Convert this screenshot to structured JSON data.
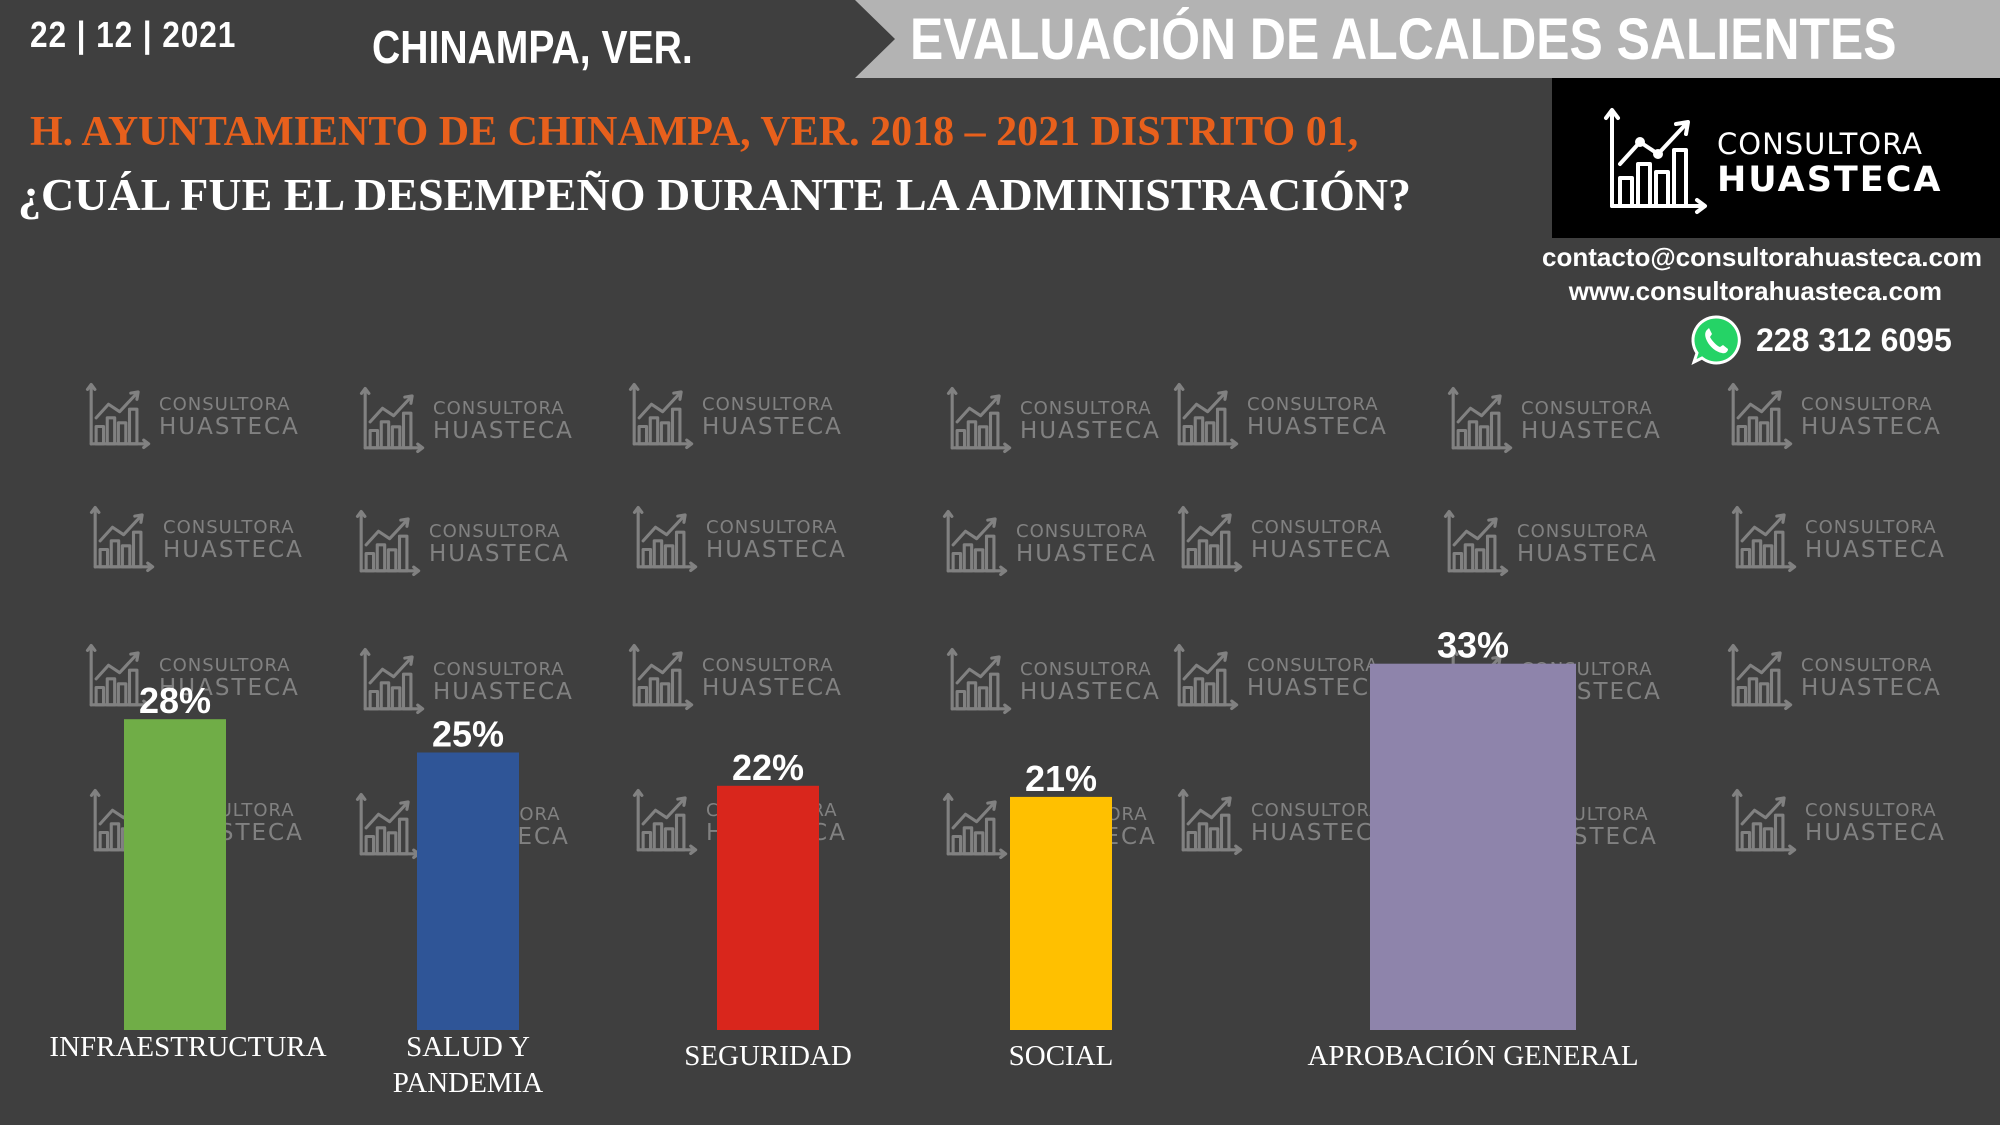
{
  "header": {
    "date": "22 | 12 | 2021",
    "location": "CHINAMPA, VER.",
    "banner_title": "EVALUACIÓN DE ALCALDES SALIENTES",
    "subtitle": "H. AYUNTAMIENTO DE CHINAMPA, VER. 2018 – 2021 DISTRITO 01,",
    "question": "¿CUÁL FUE EL DESEMPEÑO DURANTE LA ADMINISTRACIÓN?"
  },
  "logo": {
    "line1": "CONSULTORA",
    "line2": "HUASTECA"
  },
  "contact": {
    "email": "contacto@consultorahuasteca.com",
    "website": "www.consultorahuasteca.com",
    "phone": "228 312 6095",
    "phone_icon": "whatsapp-icon"
  },
  "colors": {
    "background": "#3f3f3f",
    "subtitle": "#e8601c",
    "banner": "#b3b3b3"
  },
  "chart_data": {
    "type": "bar",
    "categories": [
      "INFRAESTRUCTURA",
      "SALUD Y PANDEMIA",
      "SEGURIDAD",
      "SOCIAL",
      "APROBACIÓN GENERAL"
    ],
    "category_lines": [
      [
        "INFRAESTRUCTURA"
      ],
      [
        "SALUD Y",
        "PANDEMIA"
      ],
      [
        "SEGURIDAD"
      ],
      [
        "SOCIAL"
      ],
      [
        "APROBACIÓN GENERAL"
      ]
    ],
    "values": [
      28,
      25,
      22,
      21,
      33
    ],
    "value_labels": [
      "28%",
      "25%",
      "22%",
      "21%",
      "33%"
    ],
    "colors": [
      "#70ad47",
      "#2f5597",
      "#d9261c",
      "#ffc000",
      "#8e84ab"
    ],
    "grid": false,
    "legend": "none"
  }
}
